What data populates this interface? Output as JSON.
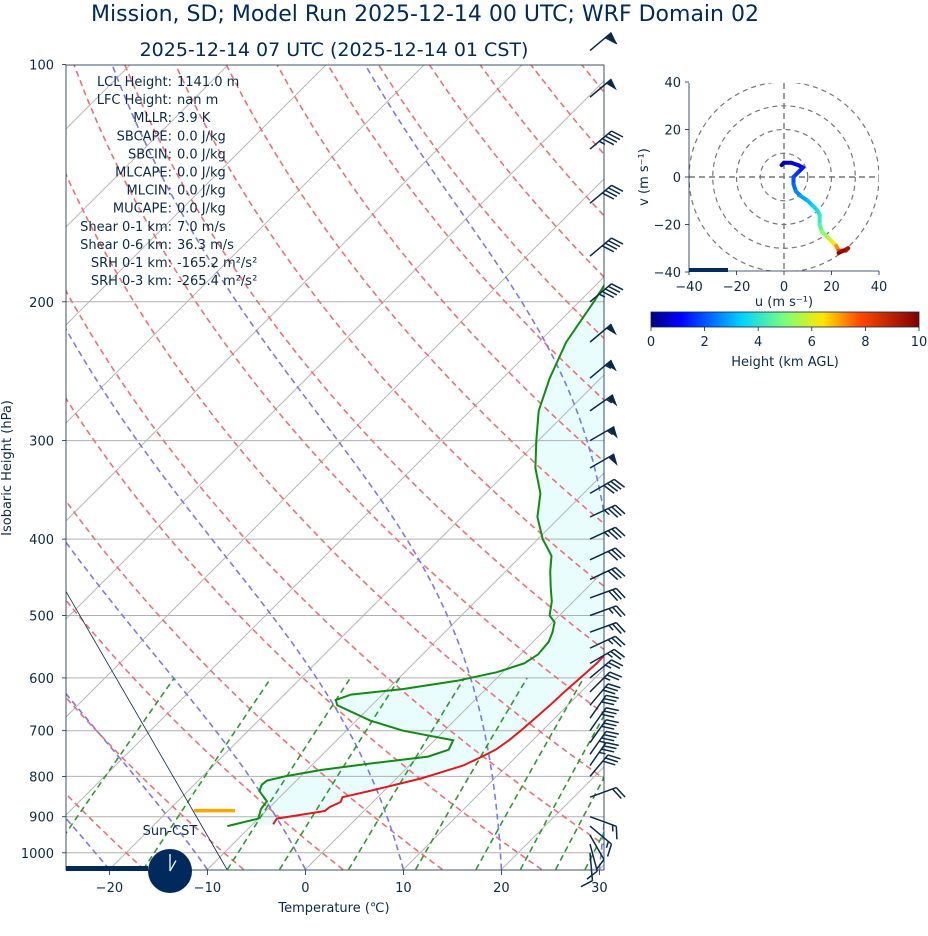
{
  "title": "Mission, SD; Model Run 2025-12-14 00 UTC; WRF Domain 02",
  "subtitle": "2025-12-14 07 UTC  (2025-12-14 01 CST)",
  "colors": {
    "title": "#002a5c",
    "temperature": "#e31a1c",
    "dewpoint": "#138a13",
    "dry_adiabat": "#f07070",
    "moist_adiabat": "#7a7aee",
    "mixing_ratio": "#2e9a2e",
    "lcl_marker": "#ffa500",
    "fill": "#e9fdfd",
    "barb": "#0b2a4a"
  },
  "chart_data": [
    {
      "type": "line",
      "name": "skewt",
      "xlabel": "Temperature (℃)",
      "ylabel": "Isobaric Height (hPa)",
      "x_ticks": [
        "−20",
        "−10",
        "0",
        "10",
        "20",
        "30"
      ],
      "x_tick_values": [
        -20,
        -10,
        0,
        10,
        20,
        30
      ],
      "y_ticks": [
        "100",
        "200",
        "300",
        "400",
        "500",
        "600",
        "700",
        "800",
        "900",
        "1000"
      ],
      "y_tick_values": [
        100,
        200,
        300,
        400,
        500,
        600,
        700,
        800,
        900,
        1000
      ],
      "xlim": [
        -25,
        30
      ],
      "ylim": [
        1050,
        100
      ],
      "y_scale": "log",
      "skew": "45 degrees",
      "grid": true,
      "series": [
        {
          "name": "",
          "role": "temperature",
          "points": [
            [
              -7.9,
              920
            ],
            [
              -8.1,
              905
            ],
            [
              -6.0,
              895
            ],
            [
              -4.0,
              885
            ],
            [
              -3.9,
              875
            ],
            [
              -3.3,
              862
            ],
            [
              -3.6,
              850
            ],
            [
              -1.5,
              835
            ],
            [
              0.5,
              820
            ],
            [
              2.5,
              805
            ],
            [
              4.0,
              790
            ],
            [
              5.5,
              775
            ],
            [
              6.5,
              755
            ],
            [
              7.2,
              740
            ],
            [
              7.6,
              720
            ],
            [
              7.8,
              700
            ],
            [
              8.0,
              675
            ],
            [
              8.2,
              650
            ],
            [
              8.3,
              625
            ],
            [
              8.5,
              600
            ],
            [
              8.7,
              575
            ],
            [
              8.6,
              550
            ],
            [
              8.2,
              525
            ],
            [
              7.6,
              500
            ],
            [
              6.8,
              475
            ],
            [
              5.8,
              450
            ],
            [
              4.7,
              425
            ],
            [
              3.5,
              400
            ],
            [
              2.0,
              375
            ],
            [
              0.4,
              350
            ],
            [
              -1.2,
              325
            ],
            [
              -3.0,
              300
            ],
            [
              -4.8,
              275
            ],
            [
              -6.5,
              250
            ],
            [
              -8.3,
              225
            ],
            [
              -10.5,
              200
            ],
            [
              -13.2,
              187
            ],
            [
              -16.5,
              175
            ],
            [
              -21.0,
              150
            ],
            [
              -26.0,
              125
            ],
            [
              -31.0,
              100
            ]
          ]
        },
        {
          "name": "",
          "role": "dewpoint",
          "points": [
            [
              -12.4,
              925
            ],
            [
              -10.0,
              905
            ],
            [
              -10.7,
              880
            ],
            [
              -10.9,
              860
            ],
            [
              -12.7,
              835
            ],
            [
              -13.1,
              820
            ],
            [
              -13.0,
              810
            ],
            [
              -11.6,
              800
            ],
            [
              -8.5,
              785
            ],
            [
              -4.0,
              770
            ],
            [
              1.0,
              755
            ],
            [
              2.4,
              740
            ],
            [
              1.9,
              720
            ],
            [
              -4.2,
              700
            ],
            [
              -8.5,
              680
            ],
            [
              -13.5,
              650
            ],
            [
              -14.2,
              640
            ],
            [
              -13.2,
              630
            ],
            [
              -8.5,
              620
            ],
            [
              -3.8,
              605
            ],
            [
              -0.6,
              590
            ],
            [
              1.3,
              575
            ],
            [
              1.8,
              560
            ],
            [
              1.6,
              540
            ],
            [
              1.0,
              525
            ],
            [
              0.2,
              510
            ],
            [
              -1.0,
              500
            ],
            [
              -2.2,
              480
            ],
            [
              -3.8,
              460
            ],
            [
              -5.4,
              440
            ],
            [
              -6.9,
              420
            ],
            [
              -9.5,
              400
            ],
            [
              -12.3,
              375
            ],
            [
              -14.4,
              350
            ],
            [
              -17.5,
              325
            ],
            [
              -20.2,
              300
            ],
            [
              -23.0,
              275
            ],
            [
              -25.2,
              250
            ],
            [
              -27.2,
              225
            ],
            [
              -28.5,
              200
            ],
            [
              -30.2,
              175
            ],
            [
              -30.5,
              160
            ],
            [
              -31.0,
              150
            ],
            [
              -31.2,
              140
            ],
            [
              -32.5,
              130
            ],
            [
              -36.0,
              115
            ],
            [
              -38.0,
              100
            ]
          ]
        }
      ]
    },
    {
      "type": "line",
      "name": "hodograph",
      "xlabel": "u (m s⁻¹)",
      "ylabel": "v (m s⁻¹)",
      "x_ticks": [
        "−40",
        "−20",
        "0",
        "20",
        "40"
      ],
      "y_ticks": [
        "−40",
        "−20",
        "0",
        "20",
        "40"
      ],
      "xlim": [
        -40,
        40
      ],
      "ylim": [
        -40,
        40
      ],
      "rings": [
        10,
        20,
        30,
        40
      ],
      "series": [
        {
          "name": "",
          "color_by": "height_km_agl",
          "points": [
            [
              -1,
              5,
              0.1
            ],
            [
              0,
              6,
              0.3
            ],
            [
              3,
              6,
              0.6
            ],
            [
              6,
              5,
              0.9
            ],
            [
              8,
              4,
              1.2
            ],
            [
              6,
              2,
              1.5
            ],
            [
              4,
              0,
              1.8
            ],
            [
              4,
              -3,
              2.1
            ],
            [
              5,
              -6,
              2.4
            ],
            [
              7,
              -8,
              2.7
            ],
            [
              10,
              -10,
              3.0
            ],
            [
              12,
              -12,
              3.3
            ],
            [
              14,
              -14,
              3.6
            ],
            [
              15,
              -16,
              3.9
            ],
            [
              15,
              -20,
              4.3
            ],
            [
              16,
              -23,
              4.8
            ],
            [
              18,
              -25,
              5.3
            ],
            [
              20,
              -27,
              6.0
            ],
            [
              22,
              -29,
              6.8
            ],
            [
              23,
              -31,
              7.5
            ],
            [
              25,
              -31,
              8.2
            ],
            [
              26,
              -31,
              8.8
            ],
            [
              27,
              -30,
              9.2
            ],
            [
              25,
              -31,
              9.6
            ],
            [
              23,
              -32,
              10.0
            ]
          ]
        }
      ]
    }
  ],
  "colorbar": {
    "label": "Height (km AGL)",
    "ticks": [
      "0",
      "2",
      "4",
      "6",
      "8",
      "10"
    ]
  },
  "barbs": [
    {
      "p": 96,
      "speed": 60,
      "dir": 230
    },
    {
      "p": 110,
      "speed": 50,
      "dir": 230
    },
    {
      "p": 128,
      "speed": 45,
      "dir": 230
    },
    {
      "p": 150,
      "speed": 40,
      "dir": 230
    },
    {
      "p": 175,
      "speed": 40,
      "dir": 230
    },
    {
      "p": 200,
      "speed": 45,
      "dir": 230
    },
    {
      "p": 225,
      "speed": 50,
      "dir": 230
    },
    {
      "p": 250,
      "speed": 55,
      "dir": 230
    },
    {
      "p": 275,
      "speed": 55,
      "dir": 235
    },
    {
      "p": 300,
      "speed": 55,
      "dir": 240
    },
    {
      "p": 325,
      "speed": 50,
      "dir": 240
    },
    {
      "p": 350,
      "speed": 40,
      "dir": 240
    },
    {
      "p": 375,
      "speed": 35,
      "dir": 245
    },
    {
      "p": 400,
      "speed": 35,
      "dir": 245
    },
    {
      "p": 425,
      "speed": 30,
      "dir": 245
    },
    {
      "p": 450,
      "speed": 30,
      "dir": 245
    },
    {
      "p": 475,
      "speed": 30,
      "dir": 250
    },
    {
      "p": 500,
      "speed": 25,
      "dir": 250
    },
    {
      "p": 525,
      "speed": 25,
      "dir": 250
    },
    {
      "p": 550,
      "speed": 25,
      "dir": 245
    },
    {
      "p": 575,
      "speed": 25,
      "dir": 240
    },
    {
      "p": 600,
      "speed": 25,
      "dir": 230
    },
    {
      "p": 625,
      "speed": 25,
      "dir": 225
    },
    {
      "p": 650,
      "speed": 30,
      "dir": 220
    },
    {
      "p": 675,
      "speed": 30,
      "dir": 215
    },
    {
      "p": 700,
      "speed": 30,
      "dir": 215
    },
    {
      "p": 725,
      "speed": 30,
      "dir": 215
    },
    {
      "p": 750,
      "speed": 35,
      "dir": 215
    },
    {
      "p": 775,
      "speed": 35,
      "dir": 215
    },
    {
      "p": 800,
      "speed": 30,
      "dir": 220
    },
    {
      "p": 850,
      "speed": 20,
      "dir": 250
    },
    {
      "p": 900,
      "speed": 15,
      "dir": 290
    },
    {
      "p": 925,
      "speed": 15,
      "dir": 310
    },
    {
      "p": 950,
      "speed": 10,
      "dir": 330
    },
    {
      "p": 975,
      "speed": 10,
      "dir": 345
    },
    {
      "p": 1000,
      "speed": 10,
      "dir": 355
    }
  ],
  "indices": [
    {
      "label": "LCL Height:",
      "value": "1141.0 m"
    },
    {
      "label": "LFC Height:",
      "value": "nan m"
    },
    {
      "label": "MLLR:",
      "value": "3.9 K"
    },
    {
      "label": "SBCAPE:",
      "value": "0.0 J/kg"
    },
    {
      "label": "SBCIN:",
      "value": "0.0 J/kg"
    },
    {
      "label": "MLCAPE:",
      "value": "0.0 J/kg"
    },
    {
      "label": "MLCIN:",
      "value": "0.0 J/kg"
    },
    {
      "label": "MUCAPE:",
      "value": "0.0 J/kg"
    },
    {
      "label": "Shear 0-1 km:",
      "value": "7.0 m/s"
    },
    {
      "label": "Shear 0-6 km:",
      "value": "36.3 m/s"
    },
    {
      "label": "SRH 0-1 km:",
      "value": "-165.2 m²/s²"
    },
    {
      "label": "SRH 0-3 km:",
      "value": "-265.4 m²/s²"
    }
  ],
  "clock_label": "Sun-CST",
  "clock_time": {
    "hour": 1,
    "minute": 0
  },
  "lcl_pressure": 884
}
